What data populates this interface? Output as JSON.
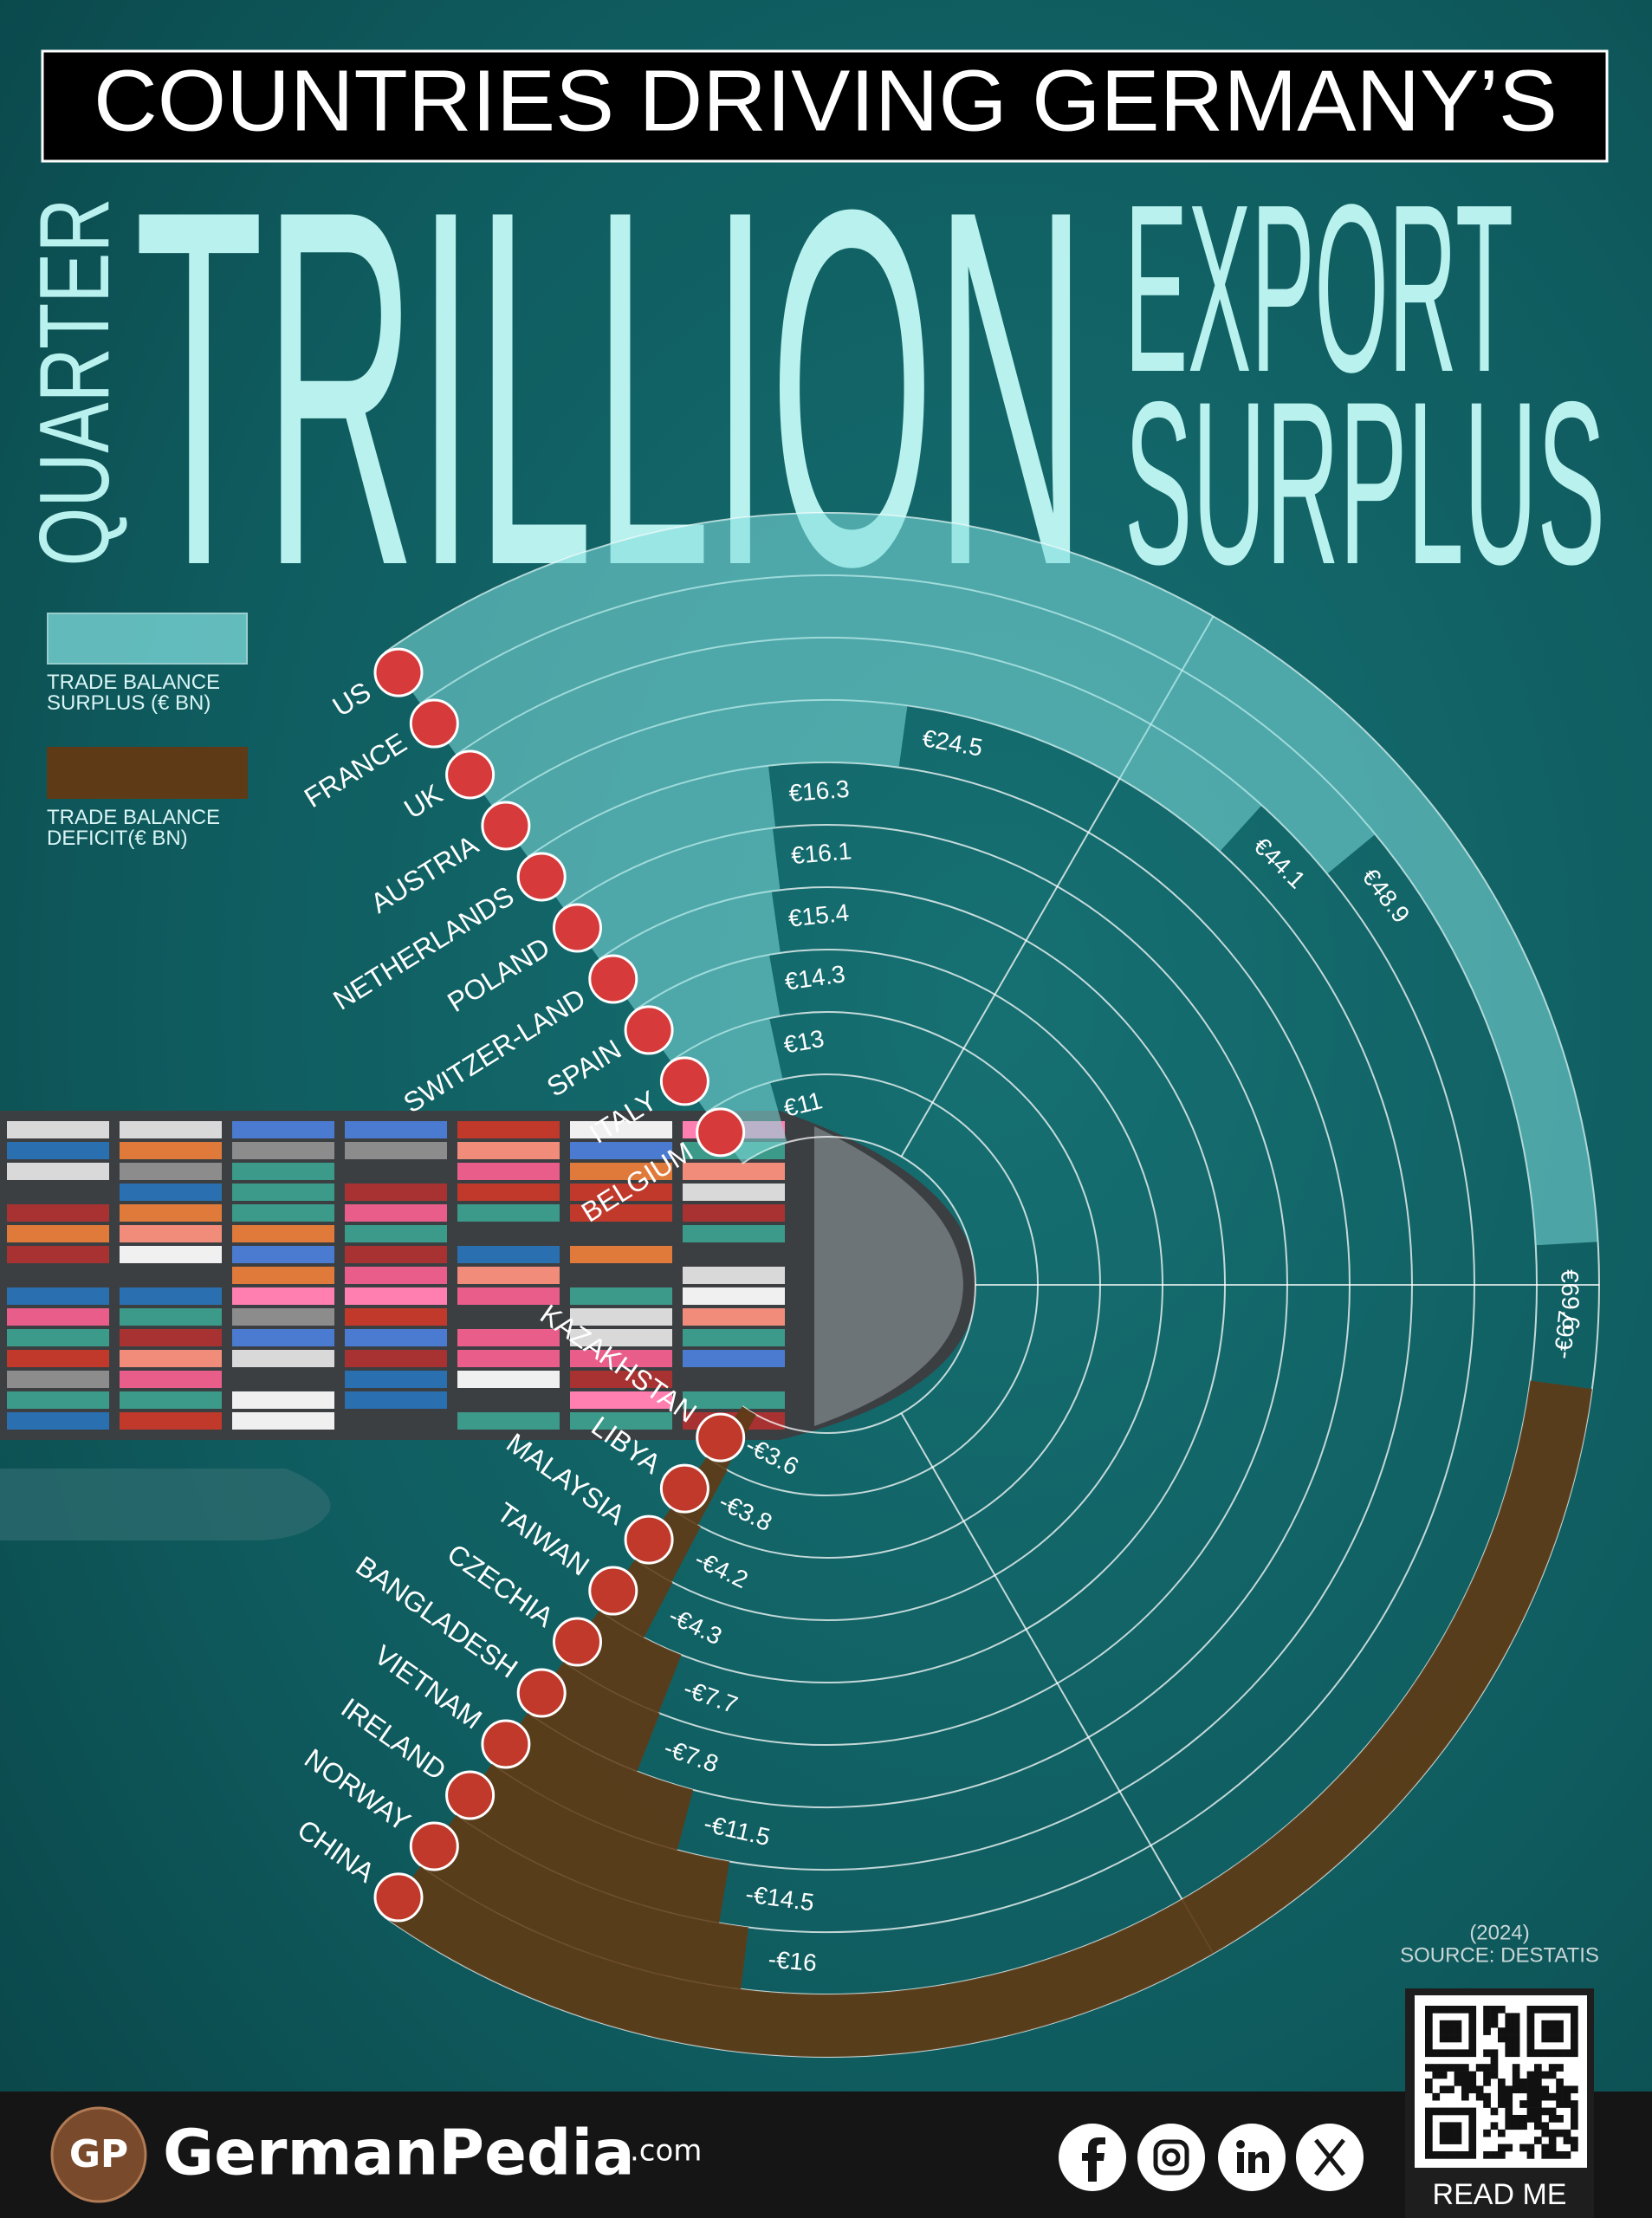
{
  "chart_data": {
    "type": "radial_bar",
    "title": "COUNTRIES DRIVING GERMANY’S",
    "headline": [
      "QUARTER",
      "TRILLION",
      "EXPORT",
      "SURPLUS"
    ],
    "series": [
      {
        "name": "TRADE BALANCE SURPLUS (€ BN)",
        "color": "#7fdcdc",
        "categories": [
          "US",
          "FRANCE",
          "UK",
          "AUSTRIA",
          "NETHERLANDS",
          "POLAND",
          "SWITZER-LAND",
          "SPAIN",
          "ITALY",
          "BELGIUM"
        ],
        "values": [
          69.6,
          48.9,
          44.1,
          24.5,
          16.3,
          16.1,
          15.4,
          14.3,
          13,
          11
        ],
        "value_labels": [
          "€69.6",
          "€48.9",
          "€44.1",
          "€24.5",
          "€16.3",
          "€16.1",
          "€15.4",
          "€14.3",
          "€13",
          "€11"
        ]
      },
      {
        "name": "TRADE BALANCE DEFICIT(€ BN)",
        "color": "#5e3b16",
        "categories": [
          "KAZAKHSTAN",
          "LIBYA",
          "MALAYSIA",
          "TAIWAN",
          "CZECHIA",
          "BANGLADESH",
          "VIETNAM",
          "IRELAND",
          "NORWAY",
          "CHINA"
        ],
        "values": [
          -3.6,
          -3.8,
          -4.2,
          -4.3,
          -7.7,
          -7.8,
          -11.5,
          -14.5,
          -16,
          -67
        ],
        "value_labels": [
          "-€3.6",
          "-€3.8",
          "-€4.2",
          "-€4.3",
          "-€7.7",
          "-€7.8",
          "-€11.5",
          "-€14.5",
          "-€16",
          "-€67"
        ]
      }
    ],
    "year": "(2024)",
    "source": "SOURCE: DESTATIS"
  },
  "footer": {
    "logo": "GP",
    "brand": "GermanPedia",
    "domain": ".com",
    "cta": "READ ME"
  }
}
